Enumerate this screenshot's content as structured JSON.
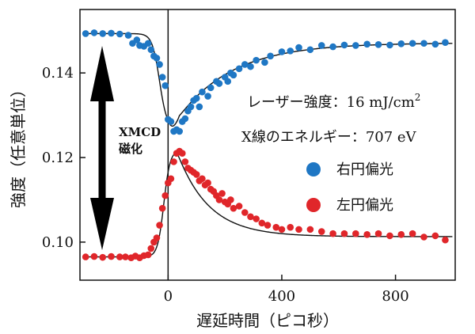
{
  "chart_data": {
    "type": "scatter",
    "xlabel": "遅延時間（ピコ秒）",
    "ylabel": "強度（任意単位）",
    "xlim": [
      -310,
      1010
    ],
    "ylim": [
      0.091,
      0.155
    ],
    "xticks": [
      0,
      400,
      800
    ],
    "yticks": [
      0.1,
      0.12,
      0.14
    ],
    "xtick_labels": [
      "0",
      "400",
      "800"
    ],
    "ytick_labels": [
      "0.10",
      "0.12",
      "0.14"
    ],
    "grid": false,
    "legend": "right",
    "annotations": {
      "laser_prefix": "レーザー強度：16 mJ/cm",
      "laser_sup": "2",
      "xray": "X線のエネルギー：707 eV",
      "xmcd_line1": "XMCD",
      "xmcd_line2": "磁化"
    },
    "series": [
      {
        "name": "右円偏光",
        "color": "#1f77c4",
        "x": [
          -290,
          -260,
          -230,
          -200,
          -170,
          -140,
          -125,
          -110,
          -100,
          -85,
          -70,
          -60,
          -50,
          -40,
          -30,
          -20,
          -10,
          0,
          10,
          20,
          30,
          40,
          50,
          60,
          70,
          80,
          90,
          100,
          110,
          120,
          140,
          150,
          170,
          180,
          200,
          210,
          220,
          230,
          250,
          270,
          290,
          310,
          340,
          360,
          400,
          430,
          460,
          500,
          540,
          580,
          620,
          660,
          700,
          740,
          780,
          820,
          860,
          900,
          940,
          975
        ],
        "y": [
          0.1493,
          0.1495,
          0.1493,
          0.1494,
          0.1492,
          0.1489,
          0.147,
          0.1478,
          0.1465,
          0.1463,
          0.147,
          0.1455,
          0.144,
          0.1435,
          0.142,
          0.139,
          0.137,
          0.129,
          0.1285,
          0.1262,
          0.1266,
          0.1262,
          0.1285,
          0.1292,
          0.131,
          0.132,
          0.1335,
          0.134,
          0.132,
          0.1355,
          0.1345,
          0.1365,
          0.138,
          0.1375,
          0.139,
          0.138,
          0.14,
          0.1395,
          0.141,
          0.142,
          0.1415,
          0.143,
          0.1425,
          0.144,
          0.145,
          0.1452,
          0.146,
          0.1455,
          0.1465,
          0.1462,
          0.1466,
          0.1465,
          0.1468,
          0.1467,
          0.1466,
          0.1469,
          0.147,
          0.147,
          0.1468,
          0.1472
        ]
      },
      {
        "name": "左円偏光",
        "color": "#e0262a",
        "x": [
          -290,
          -260,
          -230,
          -200,
          -170,
          -150,
          -130,
          -115,
          -100,
          -85,
          -70,
          -60,
          -50,
          -40,
          -30,
          -20,
          -10,
          0,
          10,
          20,
          30,
          40,
          50,
          60,
          70,
          80,
          90,
          100,
          110,
          120,
          130,
          140,
          150,
          160,
          170,
          180,
          190,
          200,
          210,
          220,
          230,
          250,
          270,
          290,
          310,
          330,
          350,
          380,
          400,
          430,
          460,
          500,
          540,
          580,
          620,
          660,
          700,
          740,
          780,
          820,
          860,
          900,
          940,
          975
        ],
        "y": [
          0.0965,
          0.0966,
          0.0964,
          0.0966,
          0.0965,
          0.0965,
          0.0963,
          0.0967,
          0.0963,
          0.0968,
          0.097,
          0.0985,
          0.1,
          0.101,
          0.104,
          0.108,
          0.111,
          0.114,
          0.115,
          0.119,
          0.121,
          0.1215,
          0.121,
          0.119,
          0.1175,
          0.117,
          0.1165,
          0.116,
          0.1145,
          0.115,
          0.1135,
          0.114,
          0.1125,
          0.112,
          0.111,
          0.11,
          0.1115,
          0.1095,
          0.109,
          0.11,
          0.108,
          0.1085,
          0.107,
          0.106,
          0.1055,
          0.1045,
          0.104,
          0.1035,
          0.103,
          0.1035,
          0.103,
          0.103,
          0.1025,
          0.102,
          0.102,
          0.102,
          0.1018,
          0.102,
          0.1015,
          0.1018,
          0.102,
          0.1012,
          0.1015,
          0.1005
        ]
      }
    ]
  }
}
